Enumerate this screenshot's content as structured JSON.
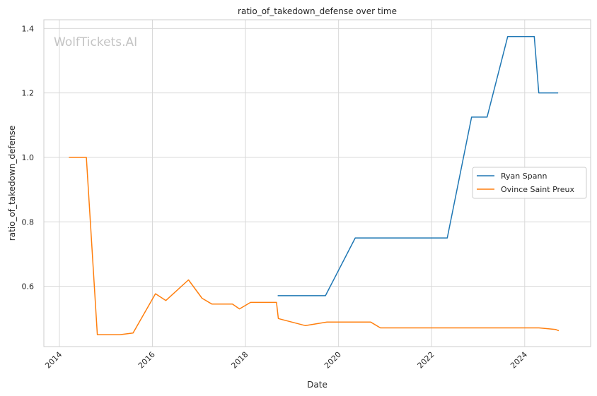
{
  "chart_data": {
    "type": "line",
    "title": "ratio_of_takedown_defense over time",
    "xlabel": "Date",
    "ylabel": "ratio_of_takedown_defense",
    "watermark": "WolfTickets.AI",
    "x_ticks": [
      "2014",
      "2016",
      "2018",
      "2020",
      "2022",
      "2024"
    ],
    "y_ticks": [
      "0.6",
      "0.8",
      "1.0",
      "1.2",
      "1.4"
    ],
    "xlim": [
      "2013-09",
      "2025-06"
    ],
    "ylim": [
      0.413,
      1.427
    ],
    "grid": true,
    "legend_position": "center-right",
    "series": [
      {
        "name": "Ryan Spann",
        "color": "#1f77b4",
        "points": [
          [
            "2018-09-10",
            0.571
          ],
          [
            "2019-09-20",
            0.571
          ],
          [
            "2020-05-10",
            0.75
          ],
          [
            "2022-05-02",
            0.75
          ],
          [
            "2022-11-10",
            1.125
          ],
          [
            "2023-03-10",
            1.125
          ],
          [
            "2023-08-20",
            1.375
          ],
          [
            "2024-03-15",
            1.375
          ],
          [
            "2024-04-20",
            1.2
          ],
          [
            "2024-09-20",
            1.2
          ]
        ]
      },
      {
        "name": "Ovince Saint Preux",
        "color": "#ff7f0e",
        "points": [
          [
            "2014-03-15",
            1.0
          ],
          [
            "2014-07-30",
            1.0
          ],
          [
            "2014-10-25",
            0.45
          ],
          [
            "2015-04-20",
            0.45
          ],
          [
            "2015-08-01",
            0.455
          ],
          [
            "2016-01-25",
            0.577
          ],
          [
            "2016-04-15",
            0.556
          ],
          [
            "2016-10-10",
            0.62
          ],
          [
            "2017-01-25",
            0.563
          ],
          [
            "2017-04-10",
            0.545
          ],
          [
            "2017-09-20",
            0.545
          ],
          [
            "2017-11-15",
            0.53
          ],
          [
            "2018-02-10",
            0.55
          ],
          [
            "2018-09-01",
            0.55
          ],
          [
            "2018-09-15",
            0.5
          ],
          [
            "2019-04-15",
            0.478
          ],
          [
            "2019-10-01",
            0.489
          ],
          [
            "2020-09-10",
            0.489
          ],
          [
            "2020-11-25",
            0.471
          ],
          [
            "2024-04-20",
            0.471
          ],
          [
            "2024-09-01",
            0.466
          ],
          [
            "2024-09-25",
            0.462
          ]
        ]
      }
    ]
  }
}
